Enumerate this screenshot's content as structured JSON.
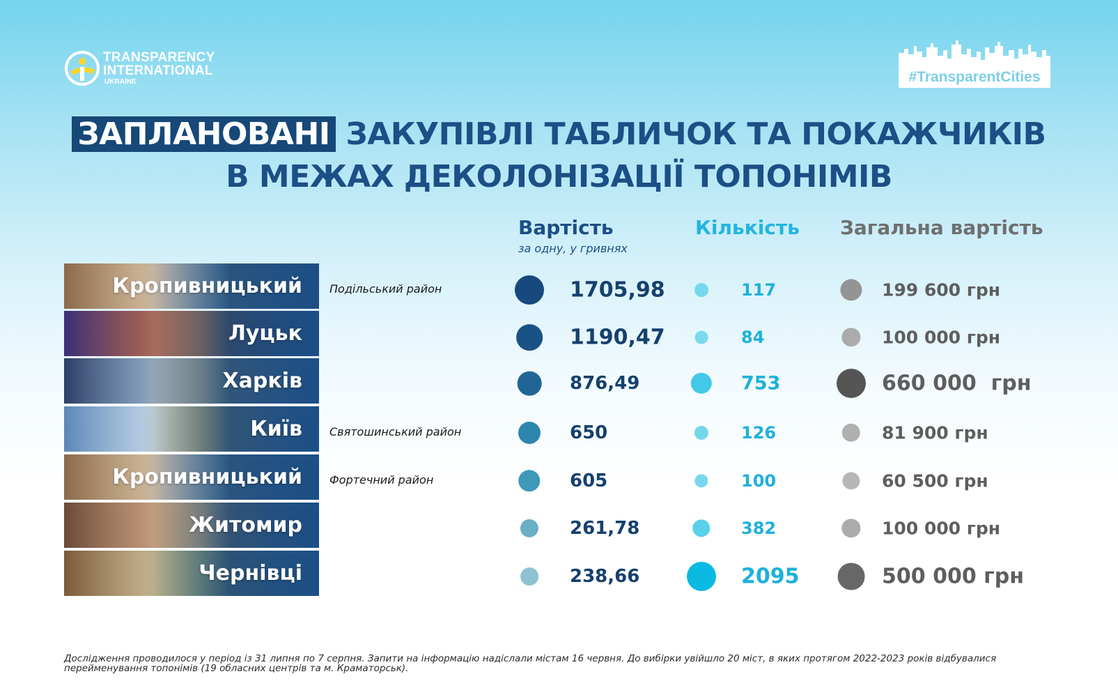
{
  "logo": {
    "line1": "TRANSPARENCY",
    "line2": "INTERNATIONAL",
    "line3": "UKRAINE"
  },
  "hashtag": "#TransparentCities",
  "title": {
    "highlight": "ЗАПЛАНОВАНІ",
    "line1_rest": " ЗАКУПІВЛІ ТАБЛИЧОК ТА ПОКАЖЧИКІВ",
    "line2": "В МЕЖАХ ДЕКОЛОНІЗАЦІЇ ТОПОНІМІВ"
  },
  "columns": {
    "cost": "Вартість",
    "cost_sub": "за одну, у гривнях",
    "quantity": "Кількість",
    "total": "Загальна вартість"
  },
  "colors": {
    "title": "#1c4f86",
    "highlight_bg": "#164878",
    "cost_header": "#1c4f86",
    "quantity_header": "#22b5df",
    "total_header": "#6f6f6f"
  },
  "chart_data": {
    "type": "table",
    "title": "ЗАПЛАНОВАНІ ЗАКУПІВЛІ ТАБЛИЧОК ТА ПОКАЖЧИКІВ В МЕЖАХ ДЕКОЛОНІЗАЦІЇ ТОПОНІМІВ",
    "columns": [
      "Вартість",
      "Кількість",
      "Загальна вартість"
    ],
    "rows": [
      {
        "city": "Кропивницький",
        "district": "Подільський район",
        "cost_label": "1705,98",
        "cost": 1705.98,
        "qty_label": "117",
        "qty": 117,
        "total_label": "199 600 грн",
        "total": 199600
      },
      {
        "city": "Луцьк",
        "district": "",
        "cost_label": "1190,47",
        "cost": 1190.47,
        "qty_label": "84",
        "qty": 84,
        "total_label": "100 000 грн",
        "total": 100000
      },
      {
        "city": "Харків",
        "district": "",
        "cost_label": "876,49",
        "cost": 876.49,
        "qty_label": "753",
        "qty": 753,
        "total_label": "660 000  грн",
        "total": 660000
      },
      {
        "city": "Київ",
        "district": "Святошинський район",
        "cost_label": "650",
        "cost": 650,
        "qty_label": "126",
        "qty": 126,
        "total_label": "81 900 грн",
        "total": 81900
      },
      {
        "city": "Кропивницький",
        "district": "Фортечний район",
        "cost_label": "605",
        "cost": 605,
        "qty_label": "100",
        "qty": 100,
        "total_label": "60 500 грн",
        "total": 60500
      },
      {
        "city": "Житомир",
        "district": "",
        "cost_label": "261,78",
        "cost": 261.78,
        "qty_label": "382",
        "qty": 382,
        "total_label": "100 000 грн",
        "total": 100000
      },
      {
        "city": "Чернівці",
        "district": "",
        "cost_label": "238,66",
        "cost": 238.66,
        "qty_label": "2095",
        "qty": 2095,
        "total_label": "500 000 грн",
        "total": 500000
      }
    ]
  },
  "footnote": "Дослідження проводилося у період із 31 липня по 7 серпня. Запити на інформацію надіслали містам 16 червня. До вибірки увійшло  20 міст, в яких протягом 2022-2023 років відбувалися перейменування топонімів (19 обласних центрів та м. Краматорськ)."
}
